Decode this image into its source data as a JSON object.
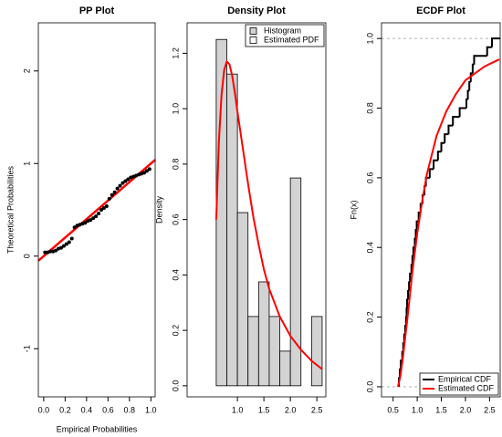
{
  "chart_data": [
    {
      "type": "scatter",
      "title": "PP Plot",
      "xlabel": "Empirical Probabilities",
      "ylabel": "Theoretical Probabilities",
      "xlim": [
        -0.05,
        1.04
      ],
      "ylim": [
        -1.52,
        2.52
      ],
      "xticks": [
        {
          "value": 0,
          "label": "0.0"
        },
        0.2,
        0.4,
        0.6,
        0.8,
        {
          "value": 1,
          "label": "1.0"
        }
      ],
      "yticks": [
        -1,
        0,
        1,
        2
      ],
      "series": [
        {
          "color": "#000000",
          "x": [
            0.0125,
            0.0375,
            0.0625,
            0.0875,
            0.1125,
            0.1375,
            0.1625,
            0.1875,
            0.2125,
            0.2375,
            0.2625,
            0.2875,
            0.3125,
            0.3375,
            0.3625,
            0.3875,
            0.4125,
            0.4375,
            0.4625,
            0.4875,
            0.5125,
            0.5375,
            0.5625,
            0.5875,
            0.6125,
            0.6375,
            0.6625,
            0.6875,
            0.7125,
            0.7375,
            0.7625,
            0.7875,
            0.8125,
            0.8375,
            0.8625,
            0.8875,
            0.9125,
            0.9375,
            0.9625,
            0.9875
          ],
          "values": [
            0.04,
            0.04,
            0.05,
            0.05,
            0.06,
            0.08,
            0.09,
            0.11,
            0.13,
            0.15,
            0.19,
            0.31,
            0.33,
            0.34,
            0.35,
            0.36,
            0.38,
            0.39,
            0.41,
            0.43,
            0.46,
            0.5,
            0.52,
            0.54,
            0.62,
            0.66,
            0.69,
            0.73,
            0.76,
            0.79,
            0.81,
            0.83,
            0.85,
            0.86,
            0.87,
            0.88,
            0.89,
            0.9,
            0.92,
            0.94
          ]
        }
      ],
      "line": {
        "color": "#ff0000",
        "x": [
          -0.05,
          1.04
        ],
        "values": [
          -0.05,
          1.04
        ]
      }
    },
    {
      "type": "histogram",
      "title": "Density Plot",
      "ylabel": "Density",
      "xlim": [
        0.05,
        2.67
      ],
      "ylim": [
        -0.04,
        1.31
      ],
      "xticks": [
        {
          "value": 1,
          "label": "1.0"
        },
        1.5,
        {
          "value": 2,
          "label": "2.0"
        },
        2.5
      ],
      "yticks": [
        {
          "value": 0,
          "label": "0.0"
        },
        0.2,
        0.4,
        0.6,
        0.8,
        {
          "value": 1,
          "label": "1.0"
        },
        1.2
      ],
      "legend": "top-right",
      "bins": [
        0.6,
        0.8,
        1.0,
        1.2,
        1.4,
        1.6,
        1.8,
        2.0,
        2.2,
        2.4,
        2.6
      ],
      "series": [
        {
          "name": "Histogram",
          "color": "#d3d3d3",
          "values": [
            1.25,
            1.125,
            0.625,
            0.25,
            0.375,
            0.25,
            0.125,
            0.75,
            0,
            0.25
          ]
        },
        {
          "name": "Estimated PDF",
          "color": "#ff0000",
          "x": [
            0.6,
            0.65,
            0.7,
            0.75,
            0.8,
            0.85,
            0.9,
            0.95,
            1.0,
            1.1,
            1.2,
            1.3,
            1.4,
            1.5,
            1.6,
            1.8,
            2.0,
            2.2,
            2.4,
            2.6
          ],
          "values": [
            0.6,
            0.88,
            1.05,
            1.14,
            1.17,
            1.16,
            1.12,
            1.06,
            0.99,
            0.86,
            0.73,
            0.61,
            0.51,
            0.42,
            0.35,
            0.25,
            0.18,
            0.13,
            0.09,
            0.06
          ]
        }
      ]
    },
    {
      "type": "ecdf",
      "title": "ECDF Plot",
      "ylabel": "Fn(x)",
      "xlim": [
        0.26,
        2.72
      ],
      "ylim": [
        -0.029,
        1.045
      ],
      "xticks": [
        0.5,
        {
          "value": 1,
          "label": "1.0"
        },
        1.5,
        {
          "value": 2,
          "label": "2.0"
        },
        2.5
      ],
      "yticks": [
        {
          "value": 0,
          "label": "0.0"
        },
        0.2,
        0.4,
        0.6,
        0.8,
        {
          "value": 1,
          "label": "1.0"
        }
      ],
      "hlines": [
        0,
        1
      ],
      "legend": "bottom-right",
      "series": [
        {
          "name": "Empirical CDF",
          "color": "#000000",
          "x": [
            0.62,
            0.64,
            0.66,
            0.69,
            0.71,
            0.73,
            0.75,
            0.77,
            0.78,
            0.79,
            0.81,
            0.83,
            0.85,
            0.88,
            0.9,
            0.92,
            0.95,
            0.97,
            0.99,
            1.03,
            1.07,
            1.11,
            1.15,
            1.18,
            1.26,
            1.34,
            1.43,
            1.5,
            1.57,
            1.65,
            1.74,
            1.88,
            2.02,
            2.05,
            2.08,
            2.11,
            2.15,
            2.18,
            2.45,
            2.55
          ],
          "values": [
            0.025,
            0.05,
            0.075,
            0.1,
            0.125,
            0.15,
            0.175,
            0.2,
            0.225,
            0.25,
            0.275,
            0.3,
            0.325,
            0.35,
            0.375,
            0.4,
            0.425,
            0.45,
            0.475,
            0.5,
            0.525,
            0.55,
            0.575,
            0.6,
            0.625,
            0.65,
            0.675,
            0.7,
            0.725,
            0.75,
            0.775,
            0.8,
            0.825,
            0.85,
            0.875,
            0.9,
            0.925,
            0.95,
            0.975,
            1
          ]
        },
        {
          "name": "Estimated CDF",
          "color": "#ff0000",
          "x": [
            0.6,
            0.65,
            0.7,
            0.75,
            0.8,
            0.9,
            1.0,
            1.1,
            1.2,
            1.4,
            1.6,
            1.8,
            2.0,
            2.2,
            2.4,
            2.7
          ],
          "values": [
            0,
            0.03,
            0.08,
            0.14,
            0.2,
            0.33,
            0.44,
            0.53,
            0.61,
            0.72,
            0.79,
            0.84,
            0.88,
            0.9,
            0.92,
            0.94
          ]
        }
      ]
    }
  ]
}
